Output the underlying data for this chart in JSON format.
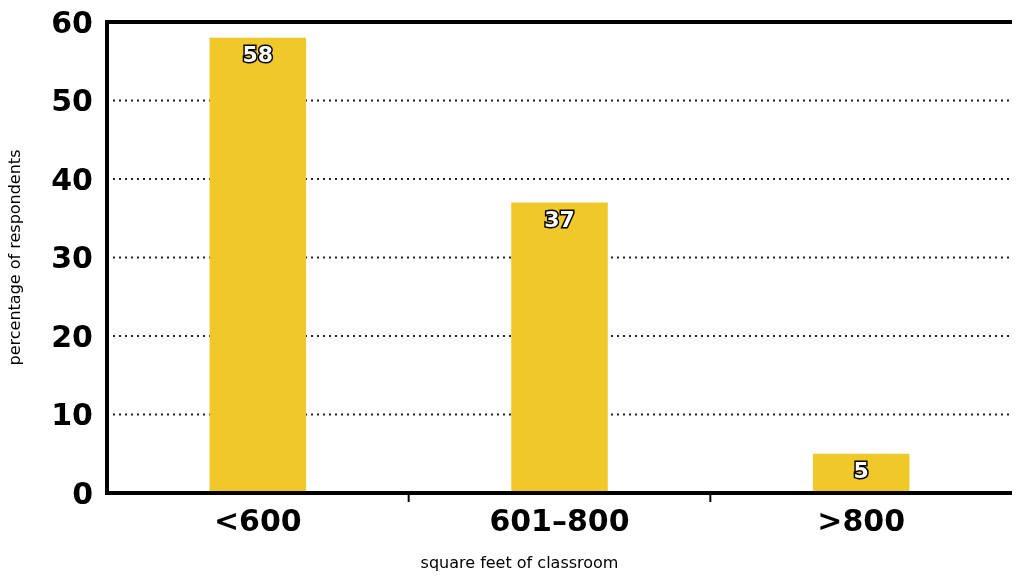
{
  "chart_data": {
    "type": "bar",
    "xlabel": "square feet of classroom",
    "ylabel": "percentage of respondents",
    "categories": [
      "<600",
      "601–800",
      ">800"
    ],
    "values": [
      58,
      37,
      5
    ],
    "color": "#efc829",
    "ylim": [
      0,
      60
    ],
    "yticks": [
      0,
      10,
      20,
      30,
      40,
      50,
      60
    ],
    "grid": "y",
    "data_labels": true
  }
}
